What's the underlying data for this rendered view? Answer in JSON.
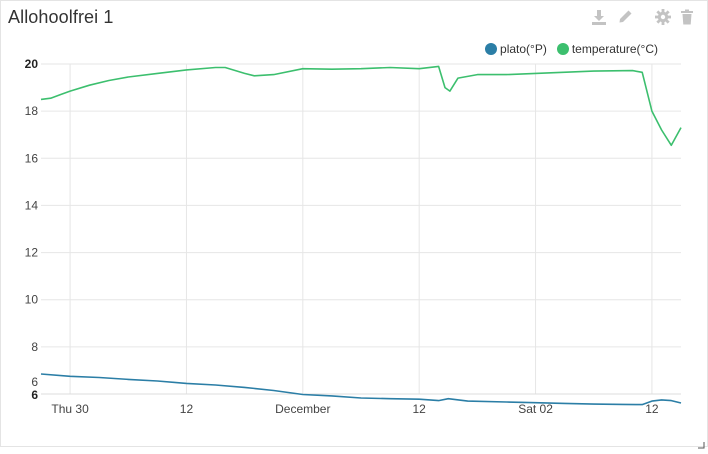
{
  "panel": {
    "title": "Allohoolfrei 1",
    "toolbar": [
      {
        "name": "download-icon",
        "label": "download"
      },
      {
        "name": "edit-icon",
        "label": "edit"
      },
      {
        "name": "settings-icon",
        "label": "settings"
      },
      {
        "name": "delete-icon",
        "label": "delete"
      }
    ],
    "toolbar_color": "#c3c3c3"
  },
  "chart_data": {
    "type": "line",
    "title": "",
    "xlabel": "",
    "ylabel": "",
    "legend_position": "top-right",
    "grid": true,
    "x_range": [
      "2017-11-29T21:00",
      "2017-12-02T15:00"
    ],
    "ylim": [
      6,
      20
    ],
    "y_ticks": [
      6,
      8,
      10,
      12,
      14,
      16,
      18,
      20
    ],
    "y_tick_labels": [
      "6",
      "8",
      "10",
      "12",
      "14",
      "16",
      "18",
      "20"
    ],
    "y_axis_bottom_label": "6",
    "x_ticks": [
      {
        "x": "2017-11-30T00:00",
        "label": "Thu 30"
      },
      {
        "x": "2017-11-30T12:00",
        "label": "12"
      },
      {
        "x": "2017-12-01T00:00",
        "label": "December"
      },
      {
        "x": "2017-12-01T12:00",
        "label": "12"
      },
      {
        "x": "2017-12-02T00:00",
        "label": "Sat 02"
      },
      {
        "x": "2017-12-02T12:00",
        "label": "12"
      }
    ],
    "series": [
      {
        "name": "plato(°P)",
        "color": "#2b7ea6",
        "points": [
          [
            "2017-11-29T21:00",
            6.85
          ],
          [
            "2017-11-30T00:00",
            6.75
          ],
          [
            "2017-11-30T03:00",
            6.7
          ],
          [
            "2017-11-30T06:00",
            6.62
          ],
          [
            "2017-11-30T09:00",
            6.55
          ],
          [
            "2017-11-30T12:00",
            6.45
          ],
          [
            "2017-11-30T15:00",
            6.38
          ],
          [
            "2017-11-30T18:00",
            6.28
          ],
          [
            "2017-11-30T21:00",
            6.15
          ],
          [
            "2017-12-01T00:00",
            5.98
          ],
          [
            "2017-12-01T03:00",
            5.92
          ],
          [
            "2017-12-01T06:00",
            5.83
          ],
          [
            "2017-12-01T09:00",
            5.8
          ],
          [
            "2017-12-01T12:00",
            5.78
          ],
          [
            "2017-12-01T14:00",
            5.72
          ],
          [
            "2017-12-01T15:00",
            5.8
          ],
          [
            "2017-12-01T17:00",
            5.7
          ],
          [
            "2017-12-01T21:00",
            5.66
          ],
          [
            "2017-12-02T00:00",
            5.63
          ],
          [
            "2017-12-02T03:00",
            5.6
          ],
          [
            "2017-12-02T06:00",
            5.57
          ],
          [
            "2017-12-02T09:00",
            5.56
          ],
          [
            "2017-12-02T11:00",
            5.55
          ],
          [
            "2017-12-02T12:00",
            5.7
          ],
          [
            "2017-12-02T13:00",
            5.75
          ],
          [
            "2017-12-02T14:00",
            5.72
          ],
          [
            "2017-12-02T15:00",
            5.62
          ]
        ]
      },
      {
        "name": "temperature(°C)",
        "color": "#3cbf6e",
        "points": [
          [
            "2017-11-29T21:00",
            18.5
          ],
          [
            "2017-11-29T22:00",
            18.55
          ],
          [
            "2017-11-29T23:00",
            18.7
          ],
          [
            "2017-11-30T00:00",
            18.85
          ],
          [
            "2017-11-30T02:00",
            19.1
          ],
          [
            "2017-11-30T04:00",
            19.3
          ],
          [
            "2017-11-30T06:00",
            19.45
          ],
          [
            "2017-11-30T09:00",
            19.6
          ],
          [
            "2017-11-30T12:00",
            19.75
          ],
          [
            "2017-11-30T15:00",
            19.85
          ],
          [
            "2017-11-30T16:00",
            19.85
          ],
          [
            "2017-11-30T18:00",
            19.6
          ],
          [
            "2017-11-30T19:00",
            19.5
          ],
          [
            "2017-11-30T21:00",
            19.55
          ],
          [
            "2017-12-01T00:00",
            19.8
          ],
          [
            "2017-12-01T03:00",
            19.78
          ],
          [
            "2017-12-01T06:00",
            19.8
          ],
          [
            "2017-12-01T09:00",
            19.85
          ],
          [
            "2017-12-01T12:00",
            19.8
          ],
          [
            "2017-12-01T14:00",
            19.9
          ],
          [
            "2017-12-01T14:40",
            19.0
          ],
          [
            "2017-12-01T15:10",
            18.85
          ],
          [
            "2017-12-01T16:00",
            19.4
          ],
          [
            "2017-12-01T18:00",
            19.55
          ],
          [
            "2017-12-01T21:00",
            19.55
          ],
          [
            "2017-12-02T00:00",
            19.6
          ],
          [
            "2017-12-02T06:00",
            19.7
          ],
          [
            "2017-12-02T10:00",
            19.72
          ],
          [
            "2017-12-02T11:00",
            19.65
          ],
          [
            "2017-12-02T12:00",
            18.0
          ],
          [
            "2017-12-02T13:00",
            17.2
          ],
          [
            "2017-12-02T14:00",
            16.55
          ],
          [
            "2017-12-02T15:00",
            17.3
          ]
        ]
      }
    ]
  }
}
